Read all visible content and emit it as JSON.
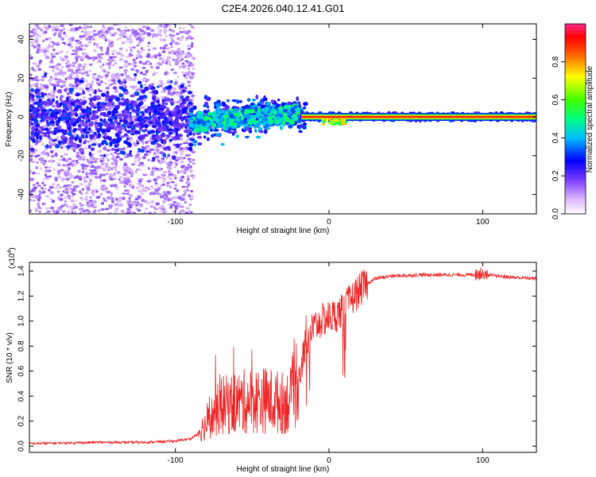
{
  "title": "C2E4.2026.040.12.41.G01",
  "chart_data": [
    {
      "type": "heatmap",
      "name": "spectrogram",
      "xlabel": "Height of straight line (km)",
      "ylabel": "Frequency (Hz)",
      "xlim": [
        -195,
        135
      ],
      "ylim": [
        -50,
        48
      ],
      "xticks": [
        -100,
        0,
        100
      ],
      "xtick_labels": [
        "-100",
        "0",
        "100"
      ],
      "yticks": [
        -40,
        -20,
        0,
        20,
        40
      ],
      "ytick_labels": [
        "-40",
        "-20",
        "0",
        "20",
        "40"
      ],
      "colorbar": {
        "label": "Normalized spectral amplitude",
        "range": [
          0,
          1
        ],
        "ticks": [
          0.0,
          0.2,
          0.4,
          0.6,
          0.8
        ],
        "tick_labels": [
          "0.0",
          "0.2",
          "0.4",
          "0.6",
          "0.8"
        ]
      },
      "line_segment": {
        "x_start": -18,
        "x_end": 135,
        "frequency": 0,
        "amplitude": 0.9
      }
    },
    {
      "type": "line",
      "name": "snr",
      "xlabel": "Height of straight line (km)",
      "ylabel": "SNR (10 * v/v)",
      "y_multiplier": "(x10",
      "y_multiplier_exp": "4",
      "y_multiplier_close": ")",
      "xlim": [
        -195,
        135
      ],
      "ylim": [
        -0.05,
        1.47
      ],
      "xticks": [
        -100,
        0,
        100
      ],
      "xtick_labels": [
        "-100",
        "0",
        "100"
      ],
      "yticks": [
        0.0,
        0.2,
        0.4,
        0.6,
        0.8,
        1.0,
        1.2,
        1.4
      ],
      "ytick_labels": [
        "0.0",
        "0.2",
        "0.4",
        "0.6",
        "0.8",
        "1.0",
        "1.2",
        "1.4"
      ],
      "color": "#ee2222",
      "envelope": [
        [
          -195,
          0.02
        ],
        [
          -150,
          0.03
        ],
        [
          -120,
          0.03
        ],
        [
          -100,
          0.04
        ],
        [
          -90,
          0.06
        ],
        [
          -85,
          0.1
        ],
        [
          -80,
          0.15
        ],
        [
          -75,
          0.22
        ],
        [
          -70,
          0.28
        ],
        [
          -60,
          0.3
        ],
        [
          -50,
          0.32
        ],
        [
          -40,
          0.32
        ],
        [
          -30,
          0.3
        ],
        [
          -25,
          0.32
        ],
        [
          -20,
          0.5
        ],
        [
          -15,
          0.85
        ],
        [
          -10,
          0.95
        ],
        [
          -5,
          1.0
        ],
        [
          0,
          1.03
        ],
        [
          5,
          1.05
        ],
        [
          10,
          1.1
        ],
        [
          15,
          1.18
        ],
        [
          20,
          1.25
        ],
        [
          25,
          1.3
        ],
        [
          30,
          1.34
        ],
        [
          40,
          1.36
        ],
        [
          60,
          1.37
        ],
        [
          80,
          1.37
        ],
        [
          100,
          1.37
        ],
        [
          120,
          1.35
        ],
        [
          135,
          1.34
        ]
      ]
    }
  ]
}
